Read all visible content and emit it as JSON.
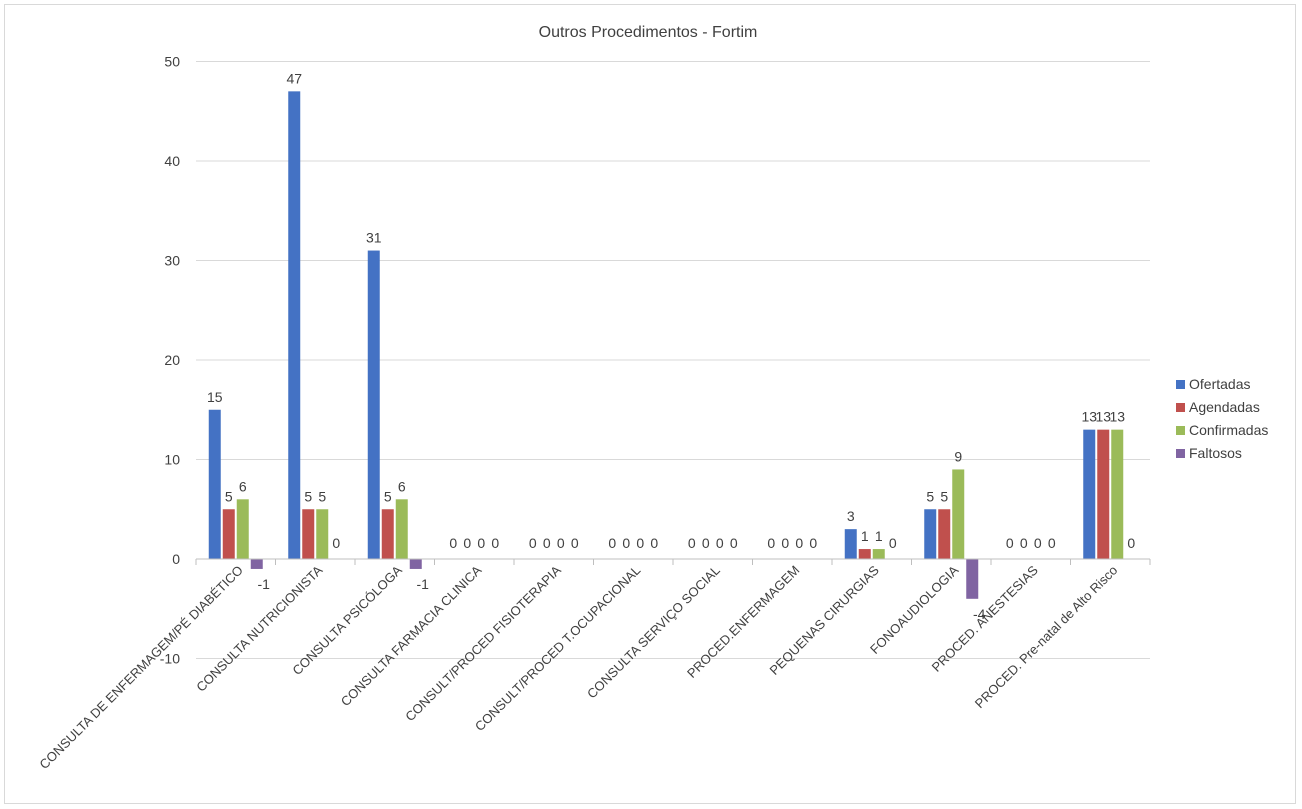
{
  "chart_data": {
    "type": "bar",
    "title": "Outros Procedimentos  - Fortim",
    "xlabel": "",
    "ylabel": "",
    "ylim": [
      -10,
      50
    ],
    "yticks": [
      -10,
      0,
      10,
      20,
      30,
      40,
      50
    ],
    "grid": true,
    "legend_position": "right",
    "categories": [
      "CONSULTA DE ENFERMAGEM/PÉ DIABÉTICO",
      "CONSULTA NUTRICIONISTA",
      "CONSULTA PSICÓLOGA",
      "CONSULTA FARMACIA CLINICA",
      "CONSULT/PROCED FISIOTERAPIA",
      "CONSULT/PROCED T.OCUPACIONAL",
      "CONSULTA SERVIÇO SOCIAL",
      "PROCED.ENFERMAGEM",
      "PEQUENAS CIRURGIAS",
      "FONOAUDIOLOGIA",
      "PROCED. ANESTESIAS",
      "PROCED. Pre-natal de Alto Risco"
    ],
    "series": [
      {
        "name": "Ofertadas",
        "color": "#4472c4",
        "values": [
          15,
          47,
          31,
          0,
          0,
          0,
          0,
          0,
          3,
          5,
          0,
          13
        ]
      },
      {
        "name": "Agendadas",
        "color": "#c0504d",
        "values": [
          5,
          5,
          5,
          0,
          0,
          0,
          0,
          0,
          1,
          5,
          0,
          13
        ]
      },
      {
        "name": "Confirmadas",
        "color": "#9bbb59",
        "values": [
          6,
          5,
          6,
          0,
          0,
          0,
          0,
          0,
          1,
          9,
          0,
          13
        ]
      },
      {
        "name": "Faltosos",
        "color": "#8064a2",
        "values": [
          -1,
          0,
          -1,
          0,
          0,
          0,
          0,
          0,
          0,
          -4,
          0,
          0
        ]
      }
    ]
  }
}
